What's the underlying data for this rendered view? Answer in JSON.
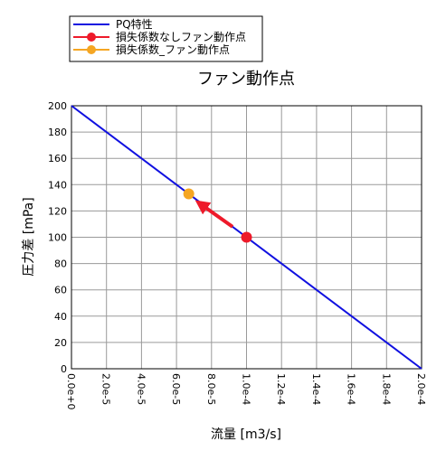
{
  "chart_data": {
    "type": "line",
    "title": "ファン動作点",
    "xlabel": "流量 [m3/s]",
    "ylabel": "圧力差 [mPa]",
    "xlim": [
      0,
      0.0002
    ],
    "ylim": [
      0,
      200
    ],
    "xticks": [
      0,
      2e-05,
      4e-05,
      6e-05,
      8e-05,
      0.0001,
      0.00012,
      0.00014,
      0.00016,
      0.00018,
      0.0002
    ],
    "xtick_labels": [
      "0.0e+0",
      "2.0e-5",
      "4.0e-5",
      "6.0e-5",
      "8.0e-5",
      "1.0e-4",
      "1.2e-4",
      "1.4e-4",
      "1.6e-4",
      "1.8e-4",
      "2.0e-4"
    ],
    "yticks": [
      0,
      20,
      40,
      60,
      80,
      100,
      120,
      140,
      160,
      180,
      200
    ],
    "ytick_labels": [
      "0",
      "20",
      "40",
      "60",
      "80",
      "100",
      "120",
      "140",
      "160",
      "180",
      "200"
    ],
    "grid": true,
    "legend_position": "top-left, outside plot",
    "series": [
      {
        "name": "PQ特性",
        "kind": "line",
        "color": "#1010e0",
        "x": [
          0,
          0.0002
        ],
        "y": [
          200,
          0
        ]
      },
      {
        "name": "損失係数なしファン動作点",
        "kind": "point",
        "color": "#ee1a2a",
        "x": [
          0.0001
        ],
        "y": [
          100
        ]
      },
      {
        "name": "損失係数_ファン動作点",
        "kind": "point",
        "color": "#f5a623",
        "x": [
          6.7e-05
        ],
        "y": [
          133
        ]
      }
    ],
    "annotations": [
      {
        "type": "arrow",
        "color": "#ee1a2a",
        "from": [
          9.2e-05,
          108
        ],
        "to": [
          7.4e-05,
          125
        ]
      }
    ]
  }
}
